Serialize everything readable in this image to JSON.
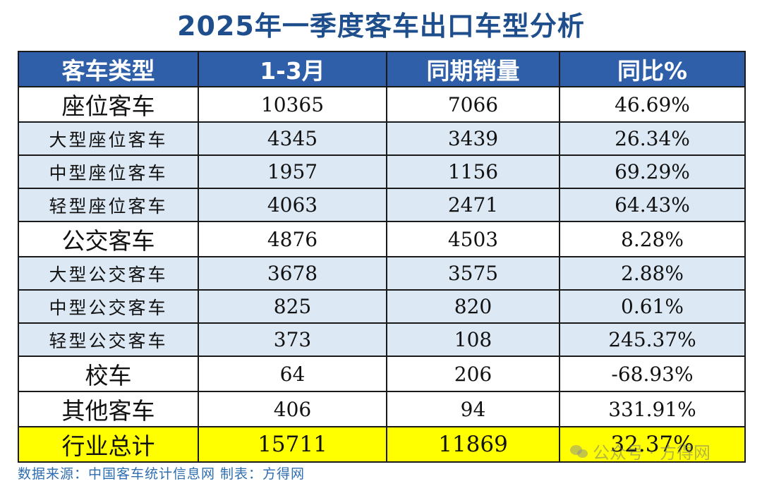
{
  "title": "2025年一季度客车出口车型分析",
  "table": {
    "headers": [
      "客车类型",
      "1-3月",
      "同期销量",
      "同比%"
    ],
    "rows": [
      {
        "type": "座位客车",
        "q1": "10365",
        "prev": "7066",
        "yoy": "46.69%",
        "level": "main"
      },
      {
        "type": "大型座位客车",
        "q1": "4345",
        "prev": "3439",
        "yoy": "26.34%",
        "level": "sub"
      },
      {
        "type": "中型座位客车",
        "q1": "1957",
        "prev": "1156",
        "yoy": "69.29%",
        "level": "sub"
      },
      {
        "type": "轻型座位客车",
        "q1": "4063",
        "prev": "2471",
        "yoy": "64.43%",
        "level": "sub"
      },
      {
        "type": "公交客车",
        "q1": "4876",
        "prev": "4503",
        "yoy": "8.28%",
        "level": "main"
      },
      {
        "type": "大型公交客车",
        "q1": "3678",
        "prev": "3575",
        "yoy": "2.88%",
        "level": "sub"
      },
      {
        "type": "中型公交客车",
        "q1": "825",
        "prev": "820",
        "yoy": "0.61%",
        "level": "sub"
      },
      {
        "type": "轻型公交客车",
        "q1": "373",
        "prev": "108",
        "yoy": "245.37%",
        "level": "sub"
      },
      {
        "type": "校车",
        "q1": "64",
        "prev": "206",
        "yoy": "-68.93%",
        "level": "main"
      },
      {
        "type": "其他客车",
        "q1": "406",
        "prev": "94",
        "yoy": "331.91%",
        "level": "main"
      },
      {
        "type": "行业总计",
        "q1": "15711",
        "prev": "11869",
        "yoy": "32.37%",
        "level": "total"
      }
    ]
  },
  "footer": {
    "source": "数据来源：中国客车统计信息网  制表：方得网"
  },
  "watermark": {
    "text": "公众号 · 方得网",
    "icon": "wechat-icon"
  },
  "colors": {
    "title": "#1f4e8c",
    "header_bg": "#2e5fa8",
    "sub_row_bg": "#dce8f4",
    "total_row_bg": "#ffff00",
    "source_text": "#2e6db0"
  }
}
